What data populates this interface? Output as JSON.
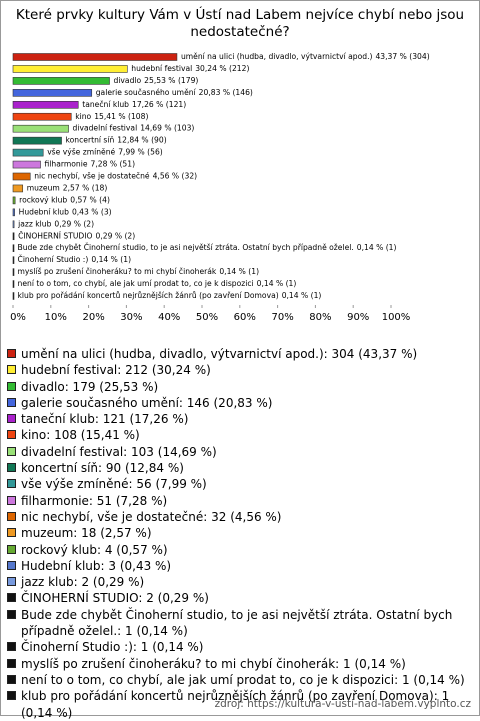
{
  "chart_data": {
    "type": "bar",
    "title": "Které prvky kultury Vám v Ústí nad Labem nejvíce chybí nebo jsou nedostatečné?",
    "categories": [
      "umění na ulici (hudba, divadlo, výtvarnictví apod.)",
      "hudební festival",
      "divadlo",
      "galerie současného umění",
      "taneční klub",
      "kino",
      "divadelní festival",
      "koncertní síň",
      "vše výše zmíněné",
      "filharmonie",
      "nic nechybí, vše je dostatečné",
      "muzeum",
      "rockový klub",
      "Hudební klub",
      "jazz klub",
      "ČINOHERNÍ STUDIO",
      "Bude zde chybět Činoherní studio, to je asi největší ztráta. Ostatní bych případně oželel.",
      "Činoherní Studio :)",
      "myslíš po zrušení činoheráku? to mi chybí činoherák",
      "není to o tom, co chybí, ale jak umí prodat to, co je k dispozici",
      "klub pro pořádání koncertů nejrůznějších žánrů (po zavření Domova)"
    ],
    "values": [
      43.37,
      30.24,
      25.53,
      20.83,
      17.26,
      15.41,
      14.69,
      12.84,
      7.99,
      7.28,
      4.56,
      2.57,
      0.57,
      0.43,
      0.29,
      0.29,
      0.14,
      0.14,
      0.14,
      0.14,
      0.14
    ],
    "value_labels": [
      "43,37 % (304)",
      "30,24 % (212)",
      "25,53 % (179)",
      "20,83 % (146)",
      "17,26 % (121)",
      "15,41 % (108)",
      "14,69 % (103)",
      "12,84 % (90)",
      "7,99 % (56)",
      "7,28 % (51)",
      "4,56 % (32)",
      "2,57 % (18)",
      "0,57 % (4)",
      "0,43 % (3)",
      "0,29 % (2)",
      "0,29 % (2)",
      "0,14 % (1)",
      "0,14 % (1)",
      "0,14 % (1)",
      "0,14 % (1)",
      "0,14 % (1)"
    ],
    "legend_labels": [
      "umění na ulici (hudba, divadlo, výtvarnictví apod.): 304 (43,37 %)",
      "hudební festival: 212 (30,24 %)",
      "divadlo: 179 (25,53 %)",
      "galerie současného umění: 146 (20,83 %)",
      "taneční klub: 121 (17,26 %)",
      "kino: 108 (15,41 %)",
      "divadelní festival: 103 (14,69 %)",
      "koncertní síň: 90 (12,84 %)",
      "vše výše zmíněné: 56 (7,99 %)",
      "filharmonie: 51 (7,28 %)",
      "nic nechybí, vše je dostatečné: 32 (4,56 %)",
      "muzeum: 18 (2,57 %)",
      "rockový klub: 4 (0,57 %)",
      "Hudební klub: 3 (0,43 %)",
      "jazz klub: 2 (0,29 %)",
      "ČINOHERNÍ STUDIO: 2 (0,29 %)",
      "Bude zde chybět Činoherní studio, to je asi největší ztráta. Ostatní bych případně oželel.: 1 (0,14 %)",
      "Činoherní Studio :): 1 (0,14 %)",
      "myslíš po zrušení činoheráku? to mi chybí činoherák: 1 (0,14 %)",
      "není to o tom, co chybí, ale jak umí prodat to, co je k dispozici: 1 (0,14 %)",
      "klub pro pořádání koncertů nejrůznějších žánrů (po zavření Domova): 1 (0,14 %)"
    ],
    "colors": [
      "#cc2211",
      "#ffee33",
      "#33bb33",
      "#4466dd",
      "#aa22cc",
      "#ee4411",
      "#99e077",
      "#117755",
      "#339999",
      "#cc77dd",
      "#dd6600",
      "#ee9922",
      "#66aa33",
      "#5577cc",
      "#7799dd",
      "#111111",
      "#111111",
      "#111111",
      "#111111",
      "#111111",
      "#111111"
    ],
    "xlim": [
      0,
      100
    ],
    "xticks": [
      {
        "value": 0,
        "label": "0%"
      },
      {
        "value": 10,
        "label": "10%"
      },
      {
        "value": 20,
        "label": "20%"
      },
      {
        "value": 30,
        "label": "30%"
      },
      {
        "value": 40,
        "label": "40%"
      },
      {
        "value": 50,
        "label": "50%"
      },
      {
        "value": 60,
        "label": "60%"
      },
      {
        "value": 70,
        "label": "70%"
      },
      {
        "value": 80,
        "label": "80%"
      },
      {
        "value": 90,
        "label": "90%"
      },
      {
        "value": 100,
        "label": "100%"
      }
    ],
    "source": "zdroj: https://kultura-v-usti-nad-labem.vyplnto.cz"
  }
}
